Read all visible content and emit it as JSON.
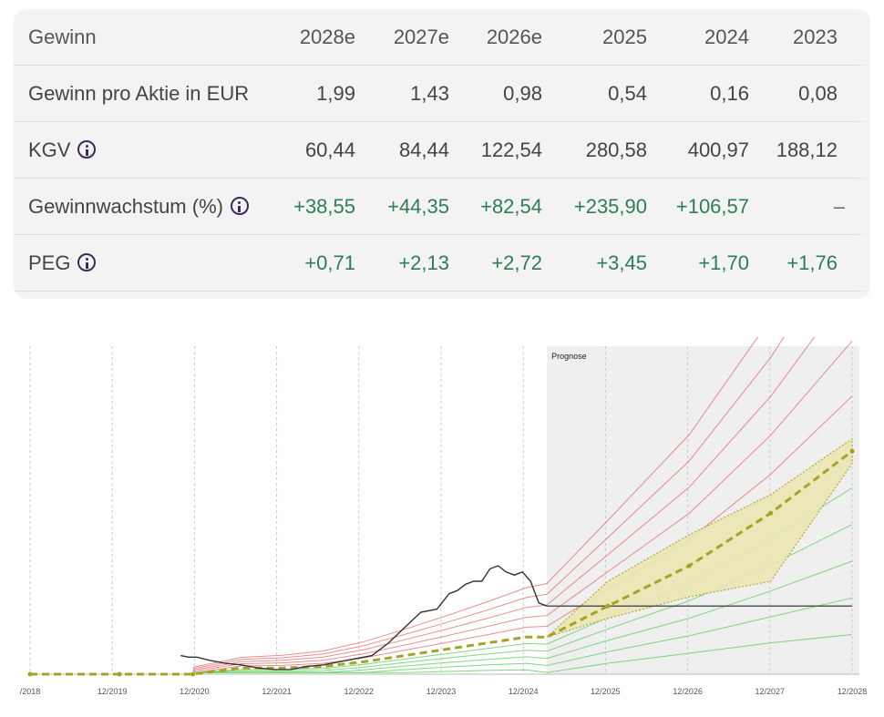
{
  "table": {
    "header": {
      "label": "Gewinn",
      "columns": [
        "2028e",
        "2027e",
        "2026e",
        "2025",
        "2024",
        "2023"
      ]
    },
    "rows": [
      {
        "label": "Gewinn pro Aktie in EUR",
        "values": [
          "1,99",
          "1,43",
          "0,98",
          "0,54",
          "0,16",
          "0,08"
        ],
        "info": false,
        "color": "neutral"
      },
      {
        "label": "KGV",
        "values": [
          "60,44",
          "84,44",
          "122,54",
          "280,58",
          "400,97",
          "188,12"
        ],
        "info": true,
        "color": "neutral"
      },
      {
        "label": "Gewinnwachstum (%)",
        "values": [
          "+38,55",
          "+44,35",
          "+82,54",
          "+235,90",
          "+106,57",
          "–"
        ],
        "info": true,
        "color": "green"
      },
      {
        "label": "PEG",
        "values": [
          "+0,71",
          "+2,13",
          "+2,72",
          "+3,45",
          "+1,70",
          "+1,76"
        ],
        "info": true,
        "color": "green"
      }
    ]
  },
  "chart_data": {
    "type": "line",
    "annotation": "Prognose",
    "x_ticks": [
      "/2018",
      "12/2019",
      "12/2020",
      "12/2021",
      "12/2022",
      "12/2023",
      "12/2024",
      "12/2025",
      "12/2026",
      "12/2027",
      "12/2028"
    ],
    "forecast_start": 2025.25,
    "x_range": [
      2018.9,
      2029.0
    ],
    "y_range": [
      0,
      1
    ],
    "grid": true,
    "colors": {
      "price": "#333333",
      "consensus": "#a6a227",
      "band_fill": "#ebe7b4",
      "red_lines": "#e06a6a",
      "green_lines": "#5fcf5f",
      "forecast_bg": "#efefef"
    },
    "price_line": {
      "x": [
        2020.75,
        2020.85,
        2020.95,
        2021.1,
        2021.3,
        2021.5,
        2021.7,
        2021.9,
        2022.1,
        2022.3,
        2022.5,
        2022.7,
        2022.9,
        2023.1,
        2023.3,
        2023.5,
        2023.7,
        2023.9,
        2024.05,
        2024.15,
        2024.25,
        2024.35,
        2024.45,
        2024.55,
        2024.65,
        2024.75,
        2024.85,
        2024.95,
        2025.05,
        2025.15,
        2025.25
      ],
      "y": [
        0.06,
        0.055,
        0.055,
        0.045,
        0.035,
        0.03,
        0.02,
        0.015,
        0.015,
        0.025,
        0.03,
        0.04,
        0.05,
        0.06,
        0.1,
        0.15,
        0.2,
        0.21,
        0.26,
        0.27,
        0.29,
        0.3,
        0.3,
        0.34,
        0.35,
        0.33,
        0.32,
        0.33,
        0.3,
        0.23,
        0.22
      ]
    },
    "consensus": {
      "x": [
        2018.9,
        2020.0,
        2020.9,
        2021.5,
        2022.0,
        2022.5,
        2023.0,
        2023.5,
        2024.0,
        2024.5,
        2025.0,
        2025.25,
        2026.0,
        2027.0,
        2028.0,
        2029.0
      ],
      "y": [
        0.0,
        0.0,
        0.0,
        0.02,
        0.02,
        0.025,
        0.04,
        0.06,
        0.08,
        0.1,
        0.12,
        0.12,
        0.22,
        0.35,
        0.52,
        0.72
      ]
    },
    "band": {
      "x": [
        2025.25,
        2026.0,
        2027.0,
        2028.0,
        2029.0
      ],
      "high": [
        0.12,
        0.3,
        0.45,
        0.58,
        0.76
      ],
      "low": [
        0.12,
        0.18,
        0.25,
        0.3,
        0.68
      ]
    },
    "reference_level": 0.22
  }
}
